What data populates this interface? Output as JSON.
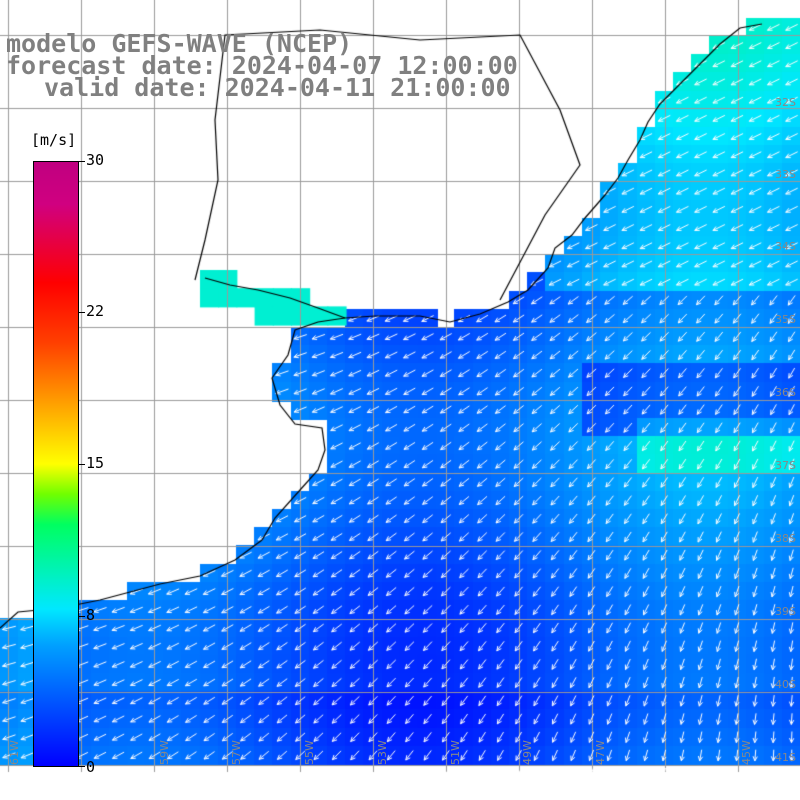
{
  "title": {
    "line1": "modelo GEFS-WAVE (NCEP)",
    "line2": "forecast date: 2024-04-07 12:00:00",
    "line3": "valid date: 2024-04-11 21:00:00"
  },
  "colorbar": {
    "unit": "[m/s]",
    "ticks": [
      "30",
      "22",
      "15",
      "8",
      "0"
    ],
    "tick_values": [
      30,
      22,
      15,
      8,
      0
    ]
  },
  "axis": {
    "lon_labels": [
      "61W",
      "59W",
      "57W",
      "55W",
      "53W",
      "51W",
      "49W",
      "47W",
      "45W"
    ],
    "lat_labels": [
      "32S",
      "33S",
      "34S",
      "35S",
      "36S",
      "37S",
      "38S",
      "39S",
      "40S",
      "41S"
    ]
  },
  "colors": {
    "land": "#ffffff",
    "coast": "#000000",
    "grid": "#9a9a9a",
    "arrows": "#ffffff",
    "title": "#808080"
  }
}
